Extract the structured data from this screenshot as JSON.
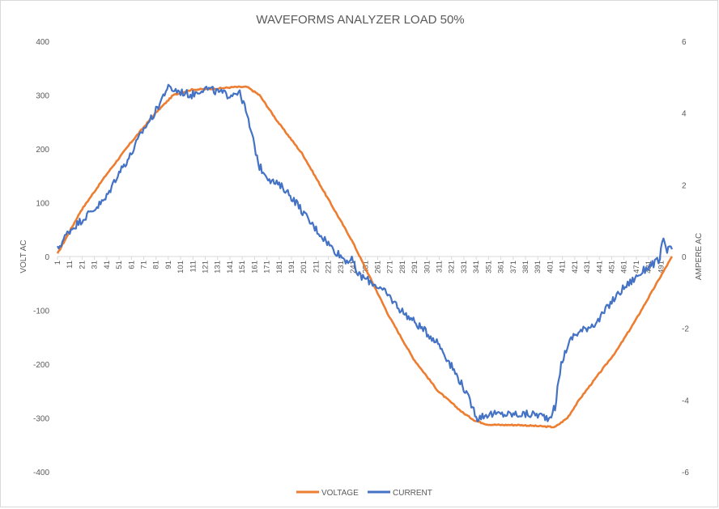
{
  "chart_data": {
    "type": "line",
    "title": "WAVEFORMS ANALYZER LOAD 50%",
    "ylabel": "VOLT AC",
    "y2label": "AMPERE AC",
    "ylim": [
      -400,
      400
    ],
    "y2lim": [
      -6,
      6
    ],
    "yticks": [
      400,
      300,
      200,
      100,
      0,
      -100,
      -200,
      -300,
      -400
    ],
    "y2ticks": [
      6,
      4,
      2,
      0,
      -2,
      -4,
      -6
    ],
    "xlim": [
      1,
      500
    ],
    "xticks": [
      1,
      11,
      21,
      31,
      41,
      51,
      61,
      71,
      81,
      91,
      101,
      111,
      121,
      131,
      141,
      151,
      161,
      171,
      181,
      191,
      201,
      211,
      221,
      231,
      241,
      251,
      261,
      271,
      281,
      291,
      301,
      311,
      321,
      331,
      341,
      351,
      361,
      371,
      381,
      391,
      401,
      411,
      421,
      431,
      441,
      451,
      461,
      471,
      481,
      491
    ],
    "legend_position": "bottom",
    "series": [
      {
        "name": "VOLTAGE",
        "axis": "left",
        "color": "#ED7D31",
        "x": [
          1,
          20,
          40,
          60,
          80,
          95,
          110,
          130,
          145,
          155,
          165,
          180,
          200,
          220,
          240,
          255,
          270,
          290,
          310,
          330,
          340,
          350,
          360,
          375,
          390,
          405,
          415,
          425,
          440,
          455,
          470,
          485,
          500
        ],
        "y": [
          5,
          85,
          150,
          210,
          265,
          300,
          310,
          312,
          315,
          315,
          300,
          250,
          190,
          110,
          30,
          -40,
          -110,
          -190,
          -250,
          -290,
          -305,
          -312,
          -313,
          -313,
          -315,
          -317,
          -300,
          -265,
          -220,
          -175,
          -120,
          -60,
          0
        ]
      },
      {
        "name": "CURRENT",
        "axis": "right",
        "color": "#4472C4",
        "x": [
          1,
          10,
          20,
          30,
          40,
          50,
          60,
          70,
          80,
          90,
          100,
          110,
          120,
          130,
          140,
          148,
          152,
          158,
          165,
          175,
          185,
          195,
          205,
          215,
          225,
          235,
          240,
          245,
          250,
          260,
          270,
          280,
          290,
          300,
          310,
          320,
          330,
          338,
          342,
          350,
          360,
          370,
          380,
          390,
          400,
          405,
          410,
          415,
          420,
          430,
          440,
          450,
          460,
          470,
          480,
          490,
          493,
          495,
          500
        ],
        "y": [
          0.2,
          0.7,
          1.0,
          1.3,
          1.6,
          2.3,
          2.8,
          3.5,
          4.0,
          4.7,
          4.6,
          4.5,
          4.7,
          4.6,
          4.5,
          4.6,
          4.3,
          3.5,
          2.5,
          2.1,
          1.9,
          1.5,
          1.0,
          0.6,
          0.2,
          -0.1,
          -0.1,
          -0.5,
          -0.6,
          -0.8,
          -1.1,
          -1.5,
          -1.8,
          -2.1,
          -2.4,
          -3.0,
          -3.6,
          -4.2,
          -4.5,
          -4.4,
          -4.4,
          -4.4,
          -4.4,
          -4.4,
          -4.5,
          -4.2,
          -3.0,
          -2.5,
          -2.2,
          -2.0,
          -1.8,
          -1.3,
          -0.9,
          -0.6,
          -0.3,
          -0.1,
          0.6,
          0.2,
          0.2
        ]
      }
    ]
  }
}
